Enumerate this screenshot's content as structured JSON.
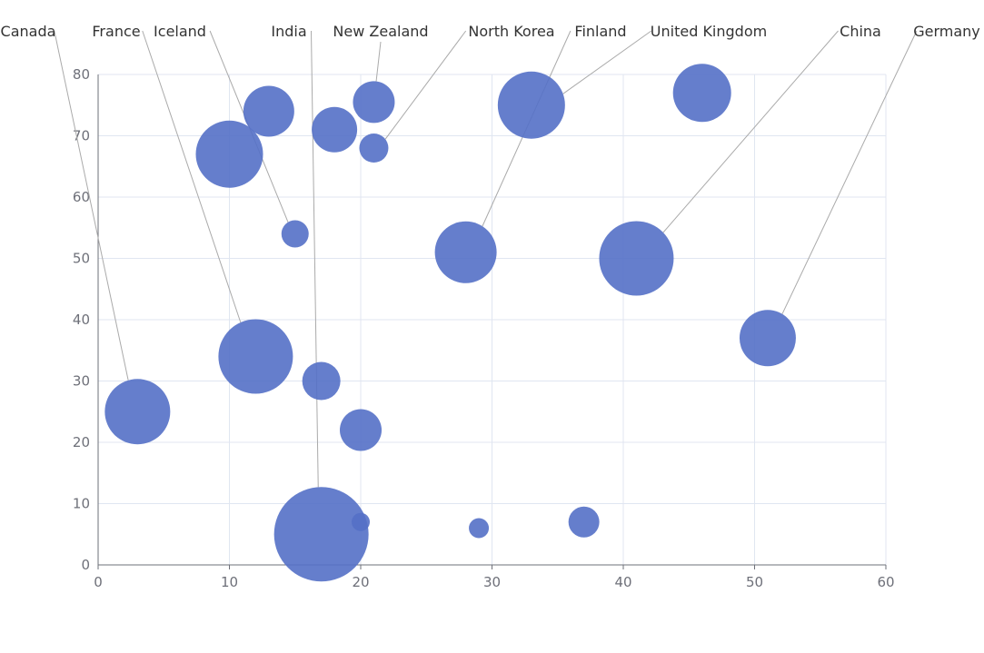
{
  "chart_data": {
    "type": "scatter",
    "title": "",
    "xlabel": "",
    "ylabel": "",
    "xlim": [
      0,
      60
    ],
    "ylim": [
      0,
      80
    ],
    "x_ticks": [
      0,
      10,
      20,
      30,
      40,
      50,
      60
    ],
    "y_ticks": [
      0,
      10,
      20,
      30,
      40,
      50,
      60,
      70,
      80
    ],
    "grid": true,
    "color": "#5470c6",
    "points": [
      {
        "x": 3,
        "y": 25,
        "size": 36,
        "label": "Canada"
      },
      {
        "x": 12,
        "y": 34,
        "size": 41,
        "label": "France"
      },
      {
        "x": 15,
        "y": 54,
        "size": 15,
        "label": "Iceland"
      },
      {
        "x": 17,
        "y": 5,
        "size": 52,
        "label": "India"
      },
      {
        "x": 21,
        "y": 75.5,
        "size": 23,
        "label": "New Zealand"
      },
      {
        "x": 21,
        "y": 68,
        "size": 16,
        "label": "North Korea"
      },
      {
        "x": 28,
        "y": 51,
        "size": 34,
        "label": "Finland"
      },
      {
        "x": 33,
        "y": 75,
        "size": 37,
        "label": "United Kingdom"
      },
      {
        "x": 41,
        "y": 50,
        "size": 41,
        "label": "China"
      },
      {
        "x": 51,
        "y": 37,
        "size": 31,
        "label": "Germany"
      },
      {
        "x": 10,
        "y": 67,
        "size": 37,
        "label": ""
      },
      {
        "x": 13,
        "y": 74,
        "size": 28,
        "label": ""
      },
      {
        "x": 18,
        "y": 71,
        "size": 25,
        "label": ""
      },
      {
        "x": 46,
        "y": 77,
        "size": 32,
        "label": ""
      },
      {
        "x": 17,
        "y": 30,
        "size": 21,
        "label": ""
      },
      {
        "x": 20,
        "y": 22,
        "size": 23,
        "label": ""
      },
      {
        "x": 20,
        "y": 7,
        "size": 10,
        "label": ""
      },
      {
        "x": 29,
        "y": 6,
        "size": 11,
        "label": ""
      },
      {
        "x": 37,
        "y": 7,
        "size": 17,
        "label": ""
      }
    ]
  }
}
